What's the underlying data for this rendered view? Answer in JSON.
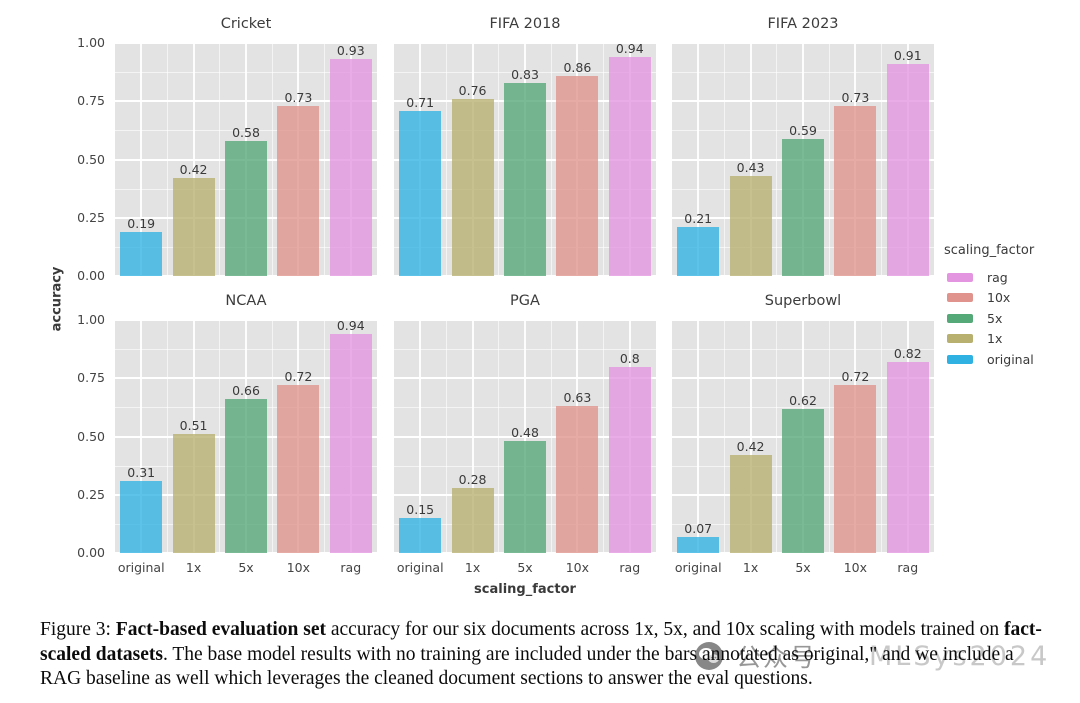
{
  "figure": {
    "caption_segments": [
      {
        "text": "Figure 3: ",
        "bold": false
      },
      {
        "text": "Fact-based evaluation set",
        "bold": true
      },
      {
        "text": " accuracy for our six documents across 1x, 5x, and 10x scaling with models trained on ",
        "bold": false
      },
      {
        "text": "fact-scaled datasets",
        "bold": true
      },
      {
        "text": ". The base model results with no training are included under the bars annotated as original,\" and we include a RAG baseline as well which leverages the cleaned document sections to answer the eval questions.",
        "bold": false
      }
    ],
    "watermark": {
      "icon": "wechat-icon",
      "text": "公众号",
      "suffix": "MLSys2024"
    }
  },
  "chart_data": {
    "type": "bar",
    "layout": "facet-grid-2rows-3cols",
    "title": "",
    "xlabel": "scaling_factor",
    "ylabel": "accuracy",
    "ylim": [
      0,
      1.0
    ],
    "yticks": [
      "1.00",
      "0.75",
      "0.50",
      "0.25",
      "0.00"
    ],
    "grid": true,
    "panel_background": "#e3e3e3",
    "categories": [
      "original",
      "1x",
      "5x",
      "10x",
      "rag"
    ],
    "panels": [
      {
        "title": "Cricket",
        "values": [
          0.19,
          0.42,
          0.58,
          0.73,
          0.93
        ]
      },
      {
        "title": "FIFA 2018",
        "values": [
          0.71,
          0.76,
          0.83,
          0.86,
          0.94
        ]
      },
      {
        "title": "FIFA 2023",
        "values": [
          0.21,
          0.43,
          0.59,
          0.73,
          0.91
        ]
      },
      {
        "title": "NCAA",
        "values": [
          0.31,
          0.51,
          0.66,
          0.72,
          0.94
        ]
      },
      {
        "title": "PGA",
        "values": [
          0.15,
          0.28,
          0.48,
          0.63,
          0.8
        ]
      },
      {
        "title": "Superbowl",
        "values": [
          0.07,
          0.42,
          0.62,
          0.72,
          0.82
        ]
      }
    ],
    "legend": {
      "title": "scaling_factor",
      "position": "right",
      "entries": [
        {
          "label": "rag",
          "color": "#e495e0"
        },
        {
          "label": "10x",
          "color": "#df938c"
        },
        {
          "label": "5x",
          "color": "#55a878"
        },
        {
          "label": "1x",
          "color": "#b7b06f"
        },
        {
          "label": "original",
          "color": "#2fb2e1"
        }
      ]
    }
  }
}
